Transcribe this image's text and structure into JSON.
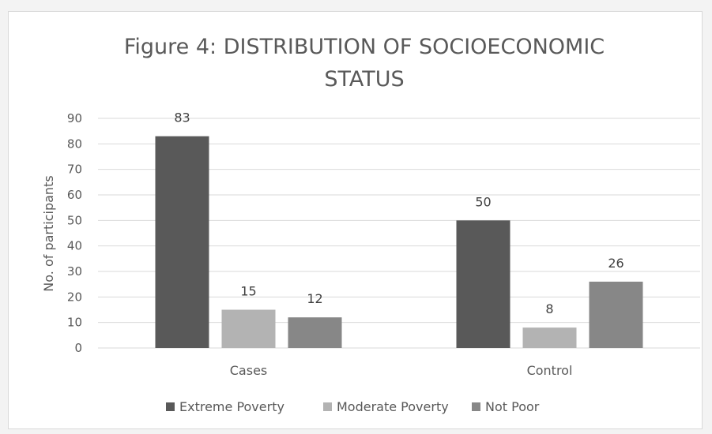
{
  "chart_data": {
    "type": "bar",
    "title_lines": [
      "Figure 4: DISTRIBUTION OF SOCIOECONOMIC",
      "STATUS"
    ],
    "ylabel": "No. of participants",
    "xlabel": "",
    "categories": [
      "Cases",
      "Control"
    ],
    "ylim": [
      0,
      90
    ],
    "yticks": [
      0,
      10,
      20,
      30,
      40,
      50,
      60,
      70,
      80,
      90
    ],
    "grid": true,
    "legend_position": "bottom",
    "series": [
      {
        "name": "Extreme Poverty",
        "values": [
          83,
          50
        ],
        "color": "#595959"
      },
      {
        "name": "Moderate Poverty",
        "values": [
          15,
          8
        ],
        "color": "#b3b3b3"
      },
      {
        "name": "Not Poor",
        "values": [
          12,
          26
        ],
        "color": "#878787"
      }
    ]
  }
}
